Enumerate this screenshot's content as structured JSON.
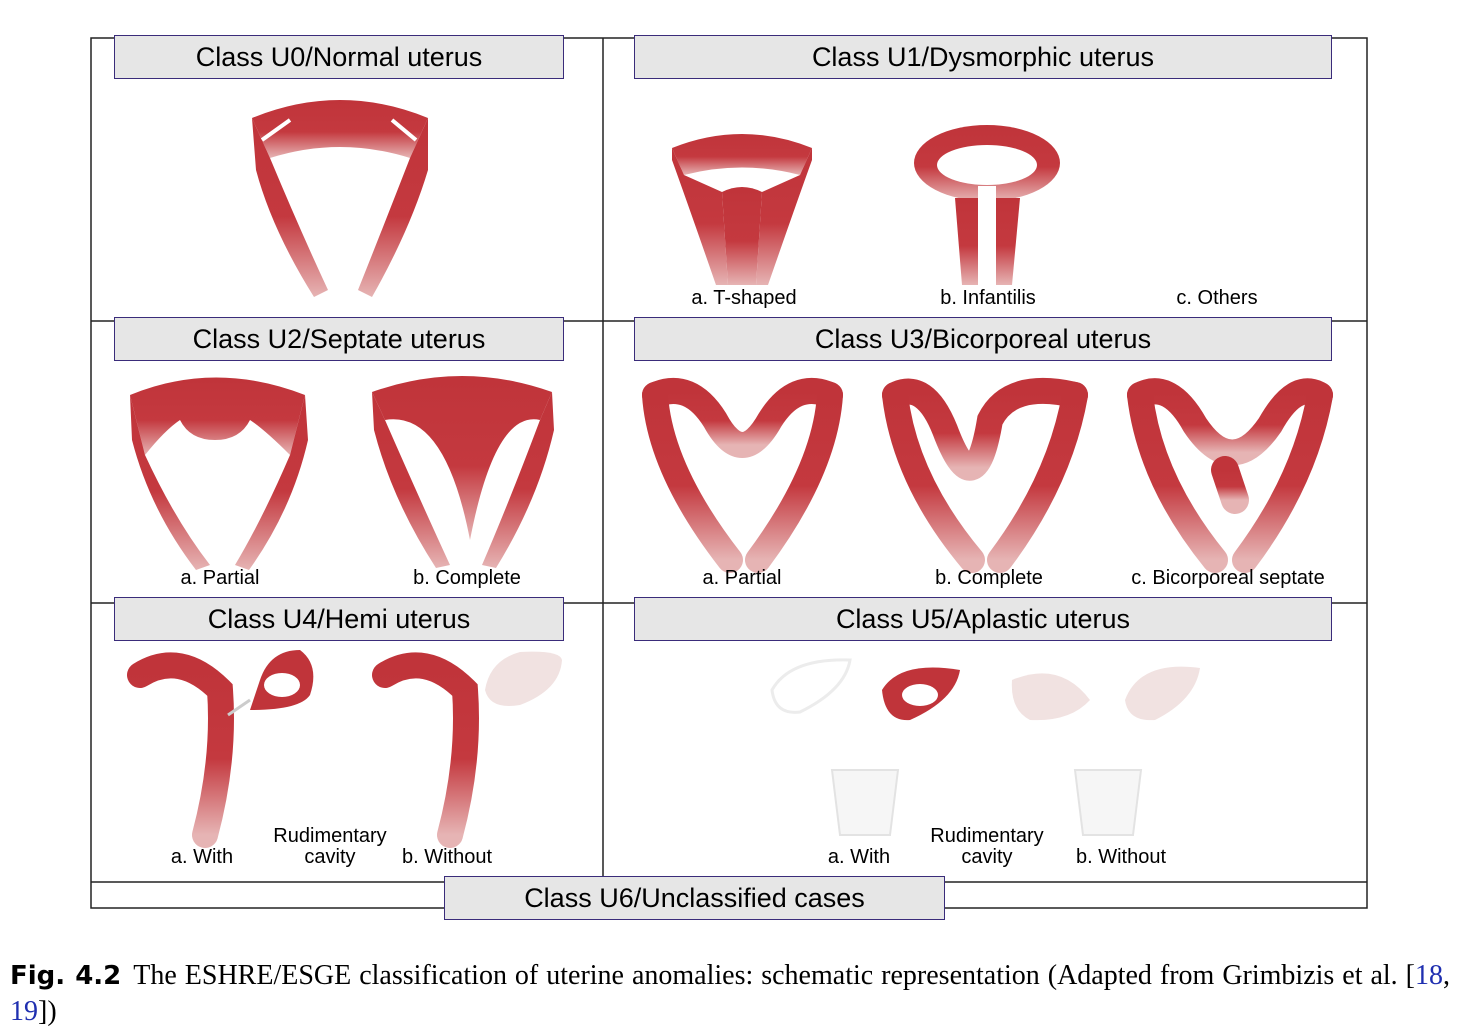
{
  "classes": {
    "u0": {
      "title": "Class U0/Normal uterus"
    },
    "u1": {
      "title": "Class U1/Dysmorphic uterus",
      "a": "a. T-shaped",
      "b": "b. Infantilis",
      "c": "c. Others"
    },
    "u2": {
      "title": "Class U2/Septate uterus",
      "a": "a. Partial",
      "b": "b. Complete"
    },
    "u3": {
      "title": "Class U3/Bicorporeal uterus",
      "a": "a. Partial",
      "b": "b. Complete",
      "c": "c. Bicorporeal septate"
    },
    "u4": {
      "title": "Class U4/Hemi uterus",
      "a": "a. With",
      "mid_line1": "Rudimentary",
      "mid_line2": "cavity",
      "b": "b. Without"
    },
    "u5": {
      "title": "Class U5/Aplastic uterus",
      "a": "a. With",
      "mid_line1": "Rudimentary",
      "mid_line2": "cavity",
      "b": "b. Without"
    },
    "u6": {
      "title": "Class U6/Unclassified cases"
    }
  },
  "caption": {
    "label": "Fig. 4.2",
    "text_before": "The ESHRE/ESGE classification of uterine anomalies: schematic representation (Adapted from Grimbizis et al. [",
    "ref1": "18",
    "separator": ", ",
    "ref2": "19",
    "text_after": "])"
  },
  "colors": {
    "uterus_red": "#c0343a",
    "uterus_fade": "#e8b8b8",
    "title_fill": "#e6e6e6",
    "title_border": "#3a2c7a",
    "reference_link": "#1f2fb0"
  }
}
